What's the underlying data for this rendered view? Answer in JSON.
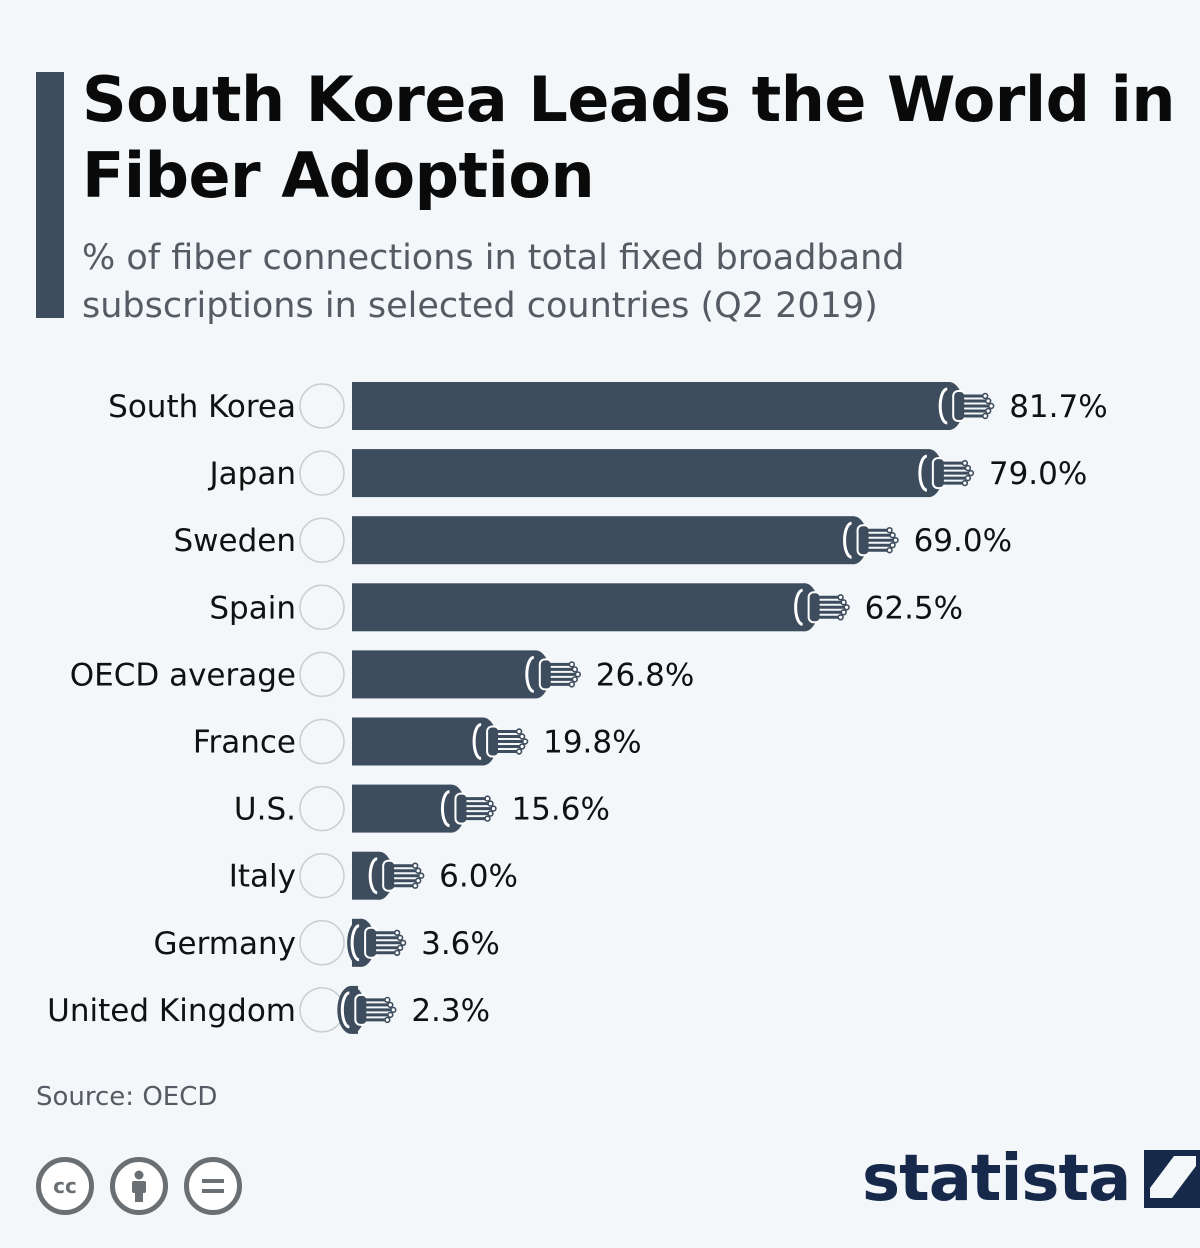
{
  "header": {
    "title": "South Korea Leads the World in Fiber Adoption",
    "subtitle": "% of fiber connections in total fixed broadband subscriptions in selected countries (Q2 2019)"
  },
  "footer": {
    "source": "Source: OECD",
    "brand": "statista",
    "cc_icons": [
      "cc-icon",
      "attribution-icon",
      "no-derivatives-icon"
    ]
  },
  "colors": {
    "bar": "#3e4d5e",
    "accent": "#3e4d5e",
    "brand": "#16294a",
    "background": "#f3f7fa"
  },
  "chart_data": {
    "type": "bar",
    "orientation": "horizontal",
    "title": "South Korea Leads the World in Fiber Adoption",
    "subtitle": "% of fiber connections in total fixed broadband subscriptions in selected countries (Q2 2019)",
    "categories": [
      "South Korea",
      "Japan",
      "Sweden",
      "Spain",
      "OECD average",
      "France",
      "U.S.",
      "Italy",
      "Germany",
      "United Kingdom"
    ],
    "values": [
      81.7,
      79.0,
      69.0,
      62.5,
      26.8,
      19.8,
      15.6,
      6.0,
      3.6,
      2.3
    ],
    "labels": [
      "81.7%",
      "79.0%",
      "69.0%",
      "62.5%",
      "26.8%",
      "19.8%",
      "15.6%",
      "6.0%",
      "3.6%",
      "2.3%"
    ],
    "flags": [
      "south-korea-flag-icon",
      "japan-flag-icon",
      "sweden-flag-icon",
      "spain-flag-icon",
      "globe-icon",
      "france-flag-icon",
      "us-flag-icon",
      "italy-flag-icon",
      "germany-flag-icon",
      "uk-flag-icon"
    ],
    "xlim": [
      0,
      100
    ],
    "grid": false,
    "legend": "none"
  }
}
